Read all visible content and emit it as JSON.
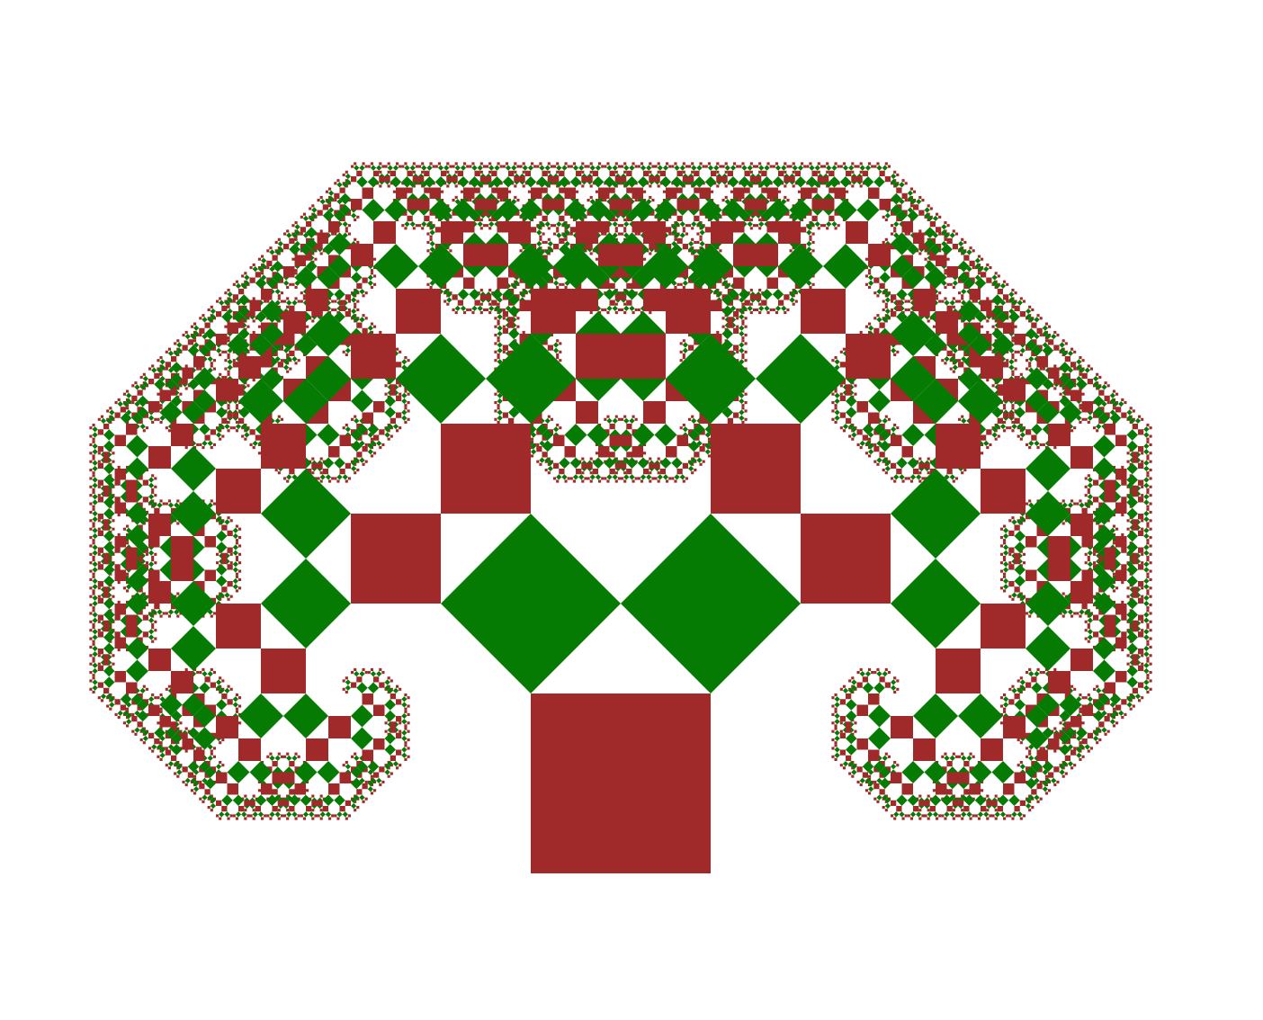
{
  "figure": {
    "kind": "pythagoras-tree-fractal",
    "branch_angle_deg": 45,
    "recursion_depth": 12,
    "palette": {
      "even_level": "#a0292a",
      "odd_level": "#067b04",
      "background": "#ffffff"
    }
  }
}
